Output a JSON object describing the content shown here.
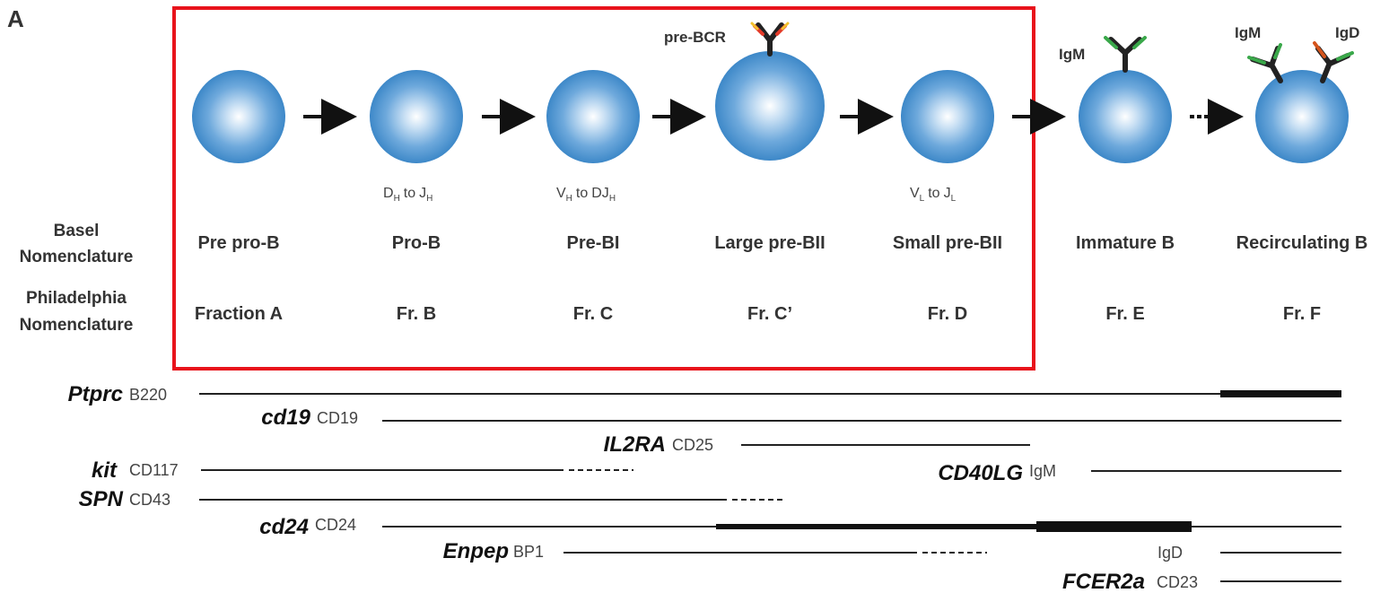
{
  "panel_letter": "A",
  "row_labels": {
    "basel_1": "Basel",
    "basel_2": "Nomenclature",
    "phila_1": "Philadelphia",
    "phila_2": "Nomenclature"
  },
  "stages": [
    {
      "basel": "Pre pro-B",
      "phila": "Fraction A",
      "rearr": "",
      "receptor": ""
    },
    {
      "basel": "Pro-B",
      "phila": "Fr. B",
      "rearr": "DH to JH",
      "receptor": ""
    },
    {
      "basel": "Pre-BI",
      "phila": "Fr. C",
      "rearr": "VH to DJH",
      "receptor": ""
    },
    {
      "basel": "Large pre-BII",
      "phila": "Fr. C’",
      "rearr": "",
      "receptor": "pre-BCR"
    },
    {
      "basel": "Small pre-BII",
      "phila": "Fr. D",
      "rearr": "VL to JL",
      "receptor": ""
    },
    {
      "basel": "Immature B",
      "phila": "Fr. E",
      "rearr": "",
      "receptor": "IgM"
    },
    {
      "basel": "Recirculating B",
      "phila": "Fr. F",
      "rearr": "",
      "receptor": "IgM / IgD"
    }
  ],
  "rearrangements": {
    "dh": "D",
    "h": "H",
    "to": "to",
    "jh": "J",
    "vh": "V",
    "djh": "DJ",
    "vl": "V",
    "l": "L",
    "jl": "J"
  },
  "antibodies": {
    "pre_bcr": "pre-BCR",
    "igm_immature": "IgM",
    "igm_recirc": "IgM",
    "igd_recirc": "IgD"
  },
  "markers": [
    {
      "gene": "Ptprc",
      "protein": "B220"
    },
    {
      "gene": "cd19",
      "protein": "CD19"
    },
    {
      "gene": "IL2RA",
      "protein": "CD25"
    },
    {
      "gene": "kit",
      "protein": "CD117"
    },
    {
      "gene": "CD40LG",
      "protein": "IgM"
    },
    {
      "gene": "SPN",
      "protein": "CD43"
    },
    {
      "gene": "cd24",
      "protein": "CD24"
    },
    {
      "gene": "Enpep",
      "protein": "BP1"
    },
    {
      "gene": "",
      "protein": "IgD"
    },
    {
      "gene": "FCER2a",
      "protein": "CD23"
    }
  ],
  "colors": {
    "cell_edge": "#3d88c8",
    "cell_center": "#ffffff",
    "highlight_box": "#e8131b",
    "heavy_chain": "#222222",
    "igm_light": "#3aa84a",
    "igd_light": "#d4541c",
    "pre_bcr_accent_1": "#e33b2a",
    "pre_bcr_accent_2": "#f2c12e"
  }
}
